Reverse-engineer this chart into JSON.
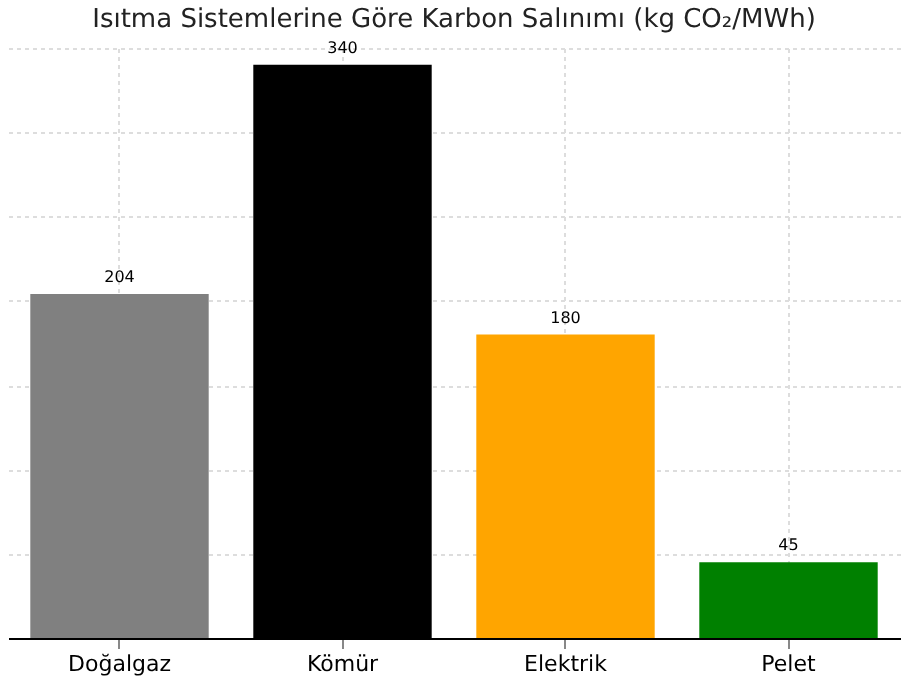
{
  "chart_data": {
    "type": "bar",
    "title": "Isıtma Sistemlerine Göre Karbon Salınımı (kg CO₂/MWh)",
    "categories": [
      "Doğalgaz",
      "Kömür",
      "Elektrik",
      "Pelet"
    ],
    "values": [
      204,
      340,
      180,
      45
    ],
    "colors": [
      "#808080",
      "#000000",
      "#ffa500",
      "#008000"
    ],
    "data_labels": true,
    "grid": true,
    "tick_labels": "x"
  }
}
